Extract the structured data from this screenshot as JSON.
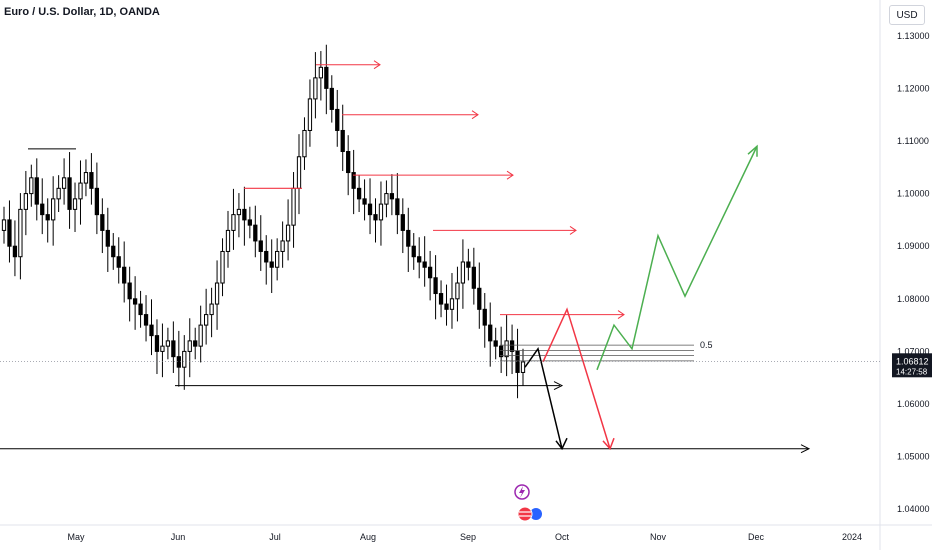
{
  "header": {
    "title": "Euro / U.S. Dollar, 1D, OANDA",
    "currency": "USD"
  },
  "price_axis": {
    "ticks": [
      "1.13000",
      "1.12000",
      "1.11000",
      "1.10000",
      "1.09000",
      "1.08000",
      "1.07000",
      "1.06000",
      "1.05000",
      "1.04000"
    ],
    "last_price": "1.06812",
    "countdown": "14:27:58"
  },
  "time_axis": {
    "ticks": [
      "May",
      "Jun",
      "Jul",
      "Aug",
      "Sep",
      "Oct",
      "Nov",
      "Dec",
      "2024"
    ]
  },
  "annotations": {
    "fib_label": "0.5"
  },
  "colors": {
    "up": "#000000",
    "down": "#000000",
    "red_line": "#f23645",
    "green_line": "#4caf50",
    "badge": "#131722"
  },
  "chart_data": {
    "type": "candlestick",
    "ylim": [
      1.037,
      1.133
    ],
    "y_ticks": [
      1.13,
      1.12,
      1.11,
      1.1,
      1.09,
      1.08,
      1.07,
      1.06,
      1.05,
      1.04
    ],
    "x_labels": [
      "May",
      "Jun",
      "Jul",
      "Aug",
      "Sep",
      "Oct",
      "Nov",
      "Dec",
      "2024"
    ],
    "close_path": [
      1.095,
      1.09,
      1.088,
      1.097,
      1.1,
      1.103,
      1.098,
      1.096,
      1.095,
      1.099,
      1.101,
      1.103,
      1.097,
      1.099,
      1.102,
      1.104,
      1.101,
      1.096,
      1.093,
      1.09,
      1.088,
      1.086,
      1.083,
      1.08,
      1.079,
      1.077,
      1.075,
      1.073,
      1.07,
      1.071,
      1.072,
      1.069,
      1.067,
      1.07,
      1.072,
      1.071,
      1.075,
      1.077,
      1.079,
      1.083,
      1.089,
      1.093,
      1.096,
      1.097,
      1.095,
      1.094,
      1.091,
      1.089,
      1.087,
      1.086,
      1.089,
      1.091,
      1.094,
      1.101,
      1.107,
      1.112,
      1.118,
      1.122,
      1.124,
      1.12,
      1.116,
      1.112,
      1.108,
      1.104,
      1.101,
      1.099,
      1.098,
      1.096,
      1.095,
      1.098,
      1.1,
      1.099,
      1.096,
      1.093,
      1.09,
      1.088,
      1.087,
      1.086,
      1.084,
      1.081,
      1.079,
      1.078,
      1.08,
      1.083,
      1.087,
      1.086,
      1.082,
      1.078,
      1.075,
      1.072,
      1.071,
      1.069,
      1.072,
      1.07,
      1.066,
      1.068
    ],
    "key_levels": [
      1.0635,
      1.0515
    ],
    "fib_levels": [
      1.0712,
      1.0702,
      1.0692,
      1.0682
    ]
  }
}
